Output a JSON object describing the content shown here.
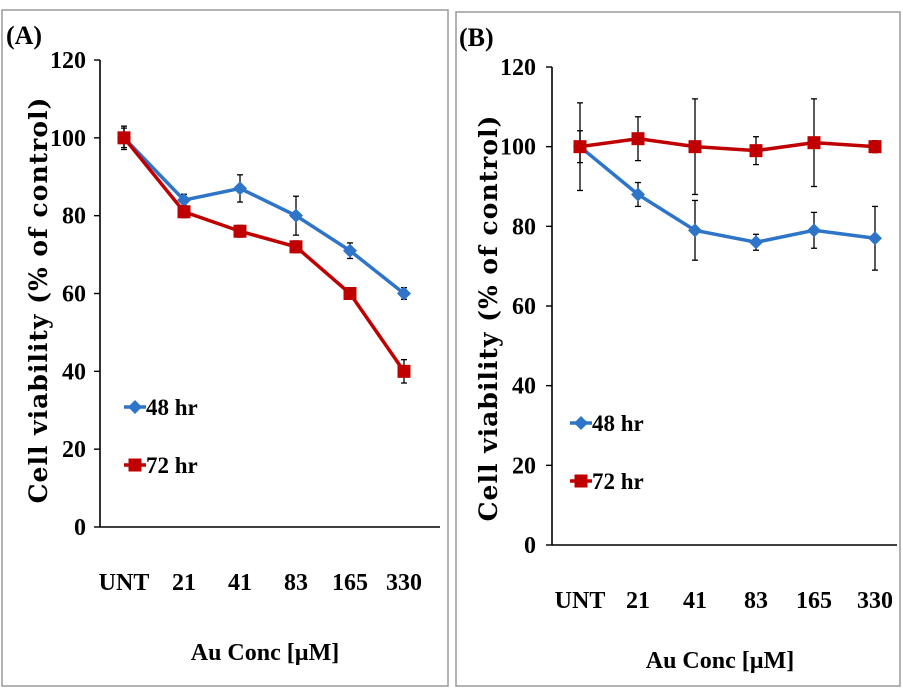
{
  "colors": {
    "series_48": "#2E74C8",
    "series_72": "#C00000",
    "axis": "#000000",
    "frame": "#9a9a9a"
  },
  "chart_data": [
    {
      "panel": "(A)",
      "type": "line",
      "categories": [
        "UNT",
        "21",
        "41",
        "83",
        "165",
        "330"
      ],
      "xlabel": "Au Conc [µM]",
      "ylabel": "Cell viability (% of control)",
      "ylim": [
        0,
        120
      ],
      "yticks": [
        0,
        20,
        40,
        60,
        80,
        100,
        120
      ],
      "grid": false,
      "legend": "left-lower",
      "series": [
        {
          "name": "48 hr",
          "marker": "diamond",
          "values": [
            100,
            84,
            87,
            80,
            71,
            60
          ],
          "errors": [
            3,
            1.5,
            3.5,
            5,
            2,
            1.5
          ]
        },
        {
          "name": "72 hr",
          "marker": "square",
          "values": [
            100,
            81,
            76,
            72,
            60,
            40
          ],
          "errors": [
            2.5,
            1.5,
            1.5,
            1.5,
            1.5,
            3
          ]
        }
      ]
    },
    {
      "panel": "(B)",
      "type": "line",
      "categories": [
        "UNT",
        "21",
        "41",
        "83",
        "165",
        "330"
      ],
      "xlabel": "Au Conc [µM]",
      "ylabel": "Cell viability (% of control)",
      "ylim": [
        0,
        120
      ],
      "yticks": [
        0,
        20,
        40,
        60,
        80,
        100,
        120
      ],
      "grid": false,
      "legend": "left-lower",
      "series": [
        {
          "name": "48 hr",
          "marker": "diamond",
          "values": [
            100,
            88,
            79,
            76,
            79,
            77
          ],
          "errors": [
            4,
            3,
            7.5,
            2,
            4.5,
            8
          ]
        },
        {
          "name": "72 hr",
          "marker": "square",
          "values": [
            100,
            102,
            100,
            99,
            101,
            100
          ],
          "errors": [
            11,
            5.5,
            12,
            3.5,
            11,
            1.5
          ]
        }
      ]
    }
  ]
}
